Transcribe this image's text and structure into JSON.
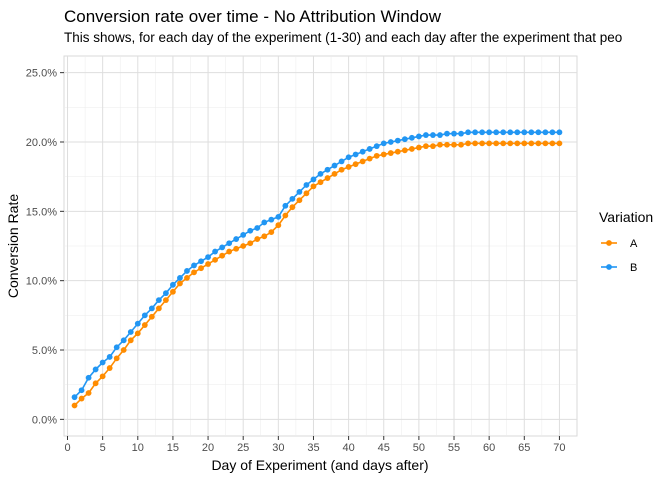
{
  "chart_data": {
    "type": "line",
    "title": "Conversion rate over time - No Attribution Window",
    "subtitle": "This shows, for each day of the experiment (1-30) and each day after the experiment that peo",
    "xlabel": "Day of Experiment (and days after)",
    "ylabel": "Conversion Rate",
    "xlim": [
      -0.5,
      72.5
    ],
    "ylim": [
      -0.012,
      0.262
    ],
    "x_ticks": [
      0,
      5,
      10,
      15,
      20,
      25,
      30,
      35,
      40,
      45,
      50,
      55,
      60,
      65,
      70
    ],
    "y_ticks": [
      0,
      0.05,
      0.1,
      0.15,
      0.2,
      0.25
    ],
    "y_tick_labels": [
      "0.0%",
      "5.0%",
      "10.0%",
      "15.0%",
      "20.0%",
      "25.0%"
    ],
    "legend_title": "Variation",
    "legend_position": "right",
    "grid": true,
    "x": [
      1,
      2,
      3,
      4,
      5,
      6,
      7,
      8,
      9,
      10,
      11,
      12,
      13,
      14,
      15,
      16,
      17,
      18,
      19,
      20,
      21,
      22,
      23,
      24,
      25,
      26,
      27,
      28,
      29,
      30,
      31,
      32,
      33,
      34,
      35,
      36,
      37,
      38,
      39,
      40,
      41,
      42,
      43,
      44,
      45,
      46,
      47,
      48,
      49,
      50,
      51,
      52,
      53,
      54,
      55,
      56,
      57,
      58,
      59,
      60,
      61,
      62,
      63,
      64,
      65,
      66,
      67,
      68,
      69,
      70
    ],
    "series": [
      {
        "name": "A",
        "color": "#ff8c00",
        "values": [
          0.01,
          0.015,
          0.019,
          0.026,
          0.031,
          0.037,
          0.044,
          0.05,
          0.057,
          0.062,
          0.068,
          0.074,
          0.08,
          0.086,
          0.092,
          0.098,
          0.102,
          0.106,
          0.109,
          0.112,
          0.115,
          0.118,
          0.121,
          0.123,
          0.125,
          0.127,
          0.13,
          0.132,
          0.135,
          0.14,
          0.147,
          0.153,
          0.158,
          0.163,
          0.168,
          0.171,
          0.174,
          0.177,
          0.18,
          0.182,
          0.184,
          0.186,
          0.188,
          0.19,
          0.191,
          0.192,
          0.193,
          0.194,
          0.195,
          0.196,
          0.197,
          0.197,
          0.198,
          0.198,
          0.198,
          0.198,
          0.199,
          0.199,
          0.199,
          0.199,
          0.199,
          0.199,
          0.199,
          0.199,
          0.199,
          0.199,
          0.199,
          0.199,
          0.199,
          0.199
        ]
      },
      {
        "name": "B",
        "color": "#2196f3",
        "values": [
          0.016,
          0.021,
          0.03,
          0.036,
          0.041,
          0.045,
          0.052,
          0.057,
          0.063,
          0.069,
          0.075,
          0.08,
          0.086,
          0.091,
          0.097,
          0.102,
          0.107,
          0.111,
          0.114,
          0.117,
          0.121,
          0.124,
          0.127,
          0.13,
          0.133,
          0.136,
          0.138,
          0.142,
          0.144,
          0.146,
          0.154,
          0.159,
          0.164,
          0.169,
          0.173,
          0.177,
          0.18,
          0.183,
          0.186,
          0.189,
          0.191,
          0.193,
          0.195,
          0.197,
          0.199,
          0.2,
          0.201,
          0.202,
          0.203,
          0.204,
          0.205,
          0.205,
          0.205,
          0.206,
          0.206,
          0.206,
          0.207,
          0.207,
          0.207,
          0.207,
          0.207,
          0.207,
          0.207,
          0.207,
          0.207,
          0.207,
          0.207,
          0.207,
          0.207,
          0.207
        ]
      }
    ]
  }
}
